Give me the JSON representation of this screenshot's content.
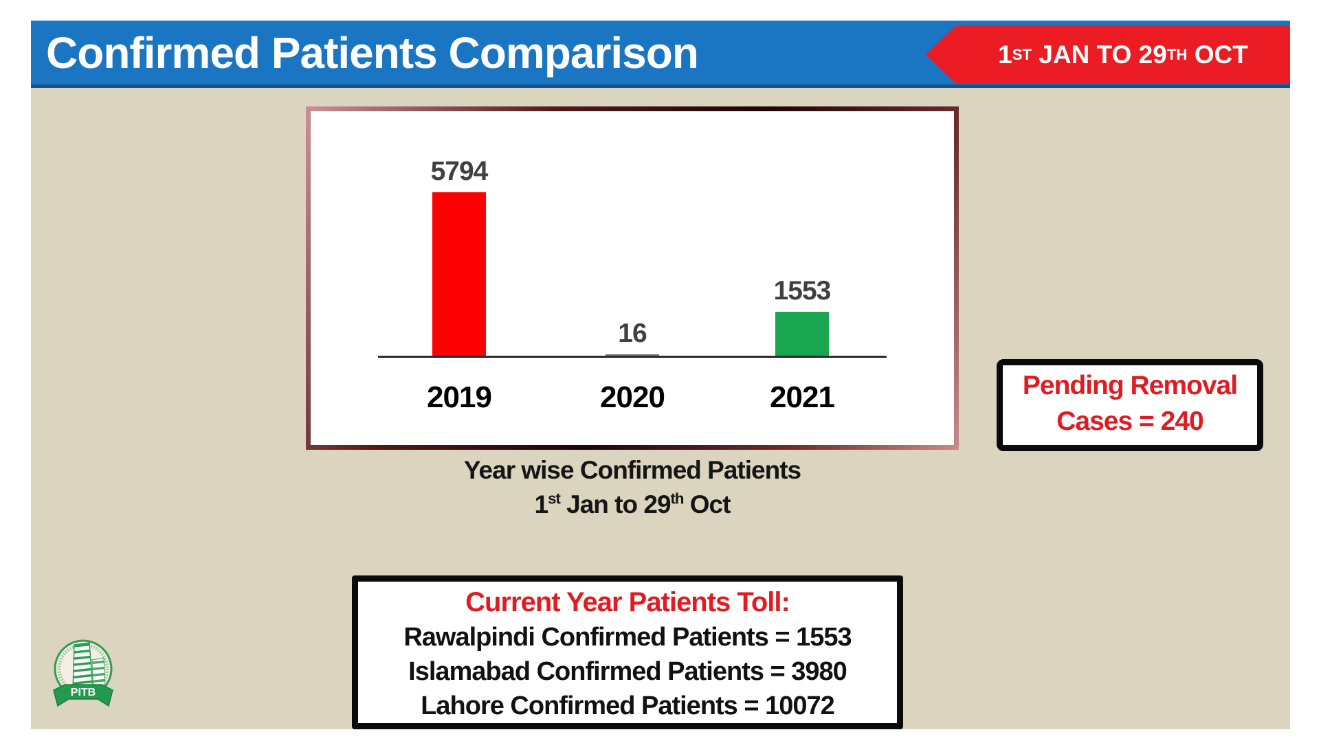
{
  "header": {
    "title": "Confirmed Patients Comparison",
    "badge": {
      "text": "1ST JAN TO 29TH OCT",
      "p1": "1",
      "sup1": "ST",
      "p2": " JAN TO 29",
      "sup2": "TH",
      "p3": " OCT"
    }
  },
  "chart_data": {
    "type": "bar",
    "title": "Year wise Confirmed Patients",
    "subtitle": "1st Jan to 29th Oct",
    "categories": [
      "2019",
      "2020",
      "2021"
    ],
    "values": [
      5794,
      16,
      1553
    ],
    "bar_colors": [
      "#fd0002",
      "#6e6e6e",
      "#1aa650"
    ],
    "value_label_color": "#404040",
    "xlabel": "",
    "ylabel": "",
    "ylim": [
      0,
      6000
    ],
    "grid": false,
    "legend": false
  },
  "caption": {
    "line2": {
      "p1": "1",
      "sup1": "st",
      "p2": " Jan to 29",
      "sup2": "th",
      "p3": " Oct"
    }
  },
  "pending_box": {
    "line1": "Pending Removal",
    "line2": "Cases = 240"
  },
  "toll_box": {
    "title": "Current Year Patients Toll:",
    "lines": [
      "Rawalpindi Confirmed Patients = 1553",
      "Islamabad Confirmed Patients = 3980",
      "Lahore Confirmed Patients = 10072"
    ]
  },
  "logo": {
    "label": "PITB"
  },
  "colors": {
    "header_blue": "#1a75c2",
    "header_edge_dark_blue": "#17518c",
    "badge_red": "#ec1c24",
    "background_beige": "#dbd5c0",
    "accent_red_text": "#e11b22",
    "bar_red": "#fd0002",
    "bar_green": "#1aa650",
    "box_border_black": "#0a0a0a"
  }
}
